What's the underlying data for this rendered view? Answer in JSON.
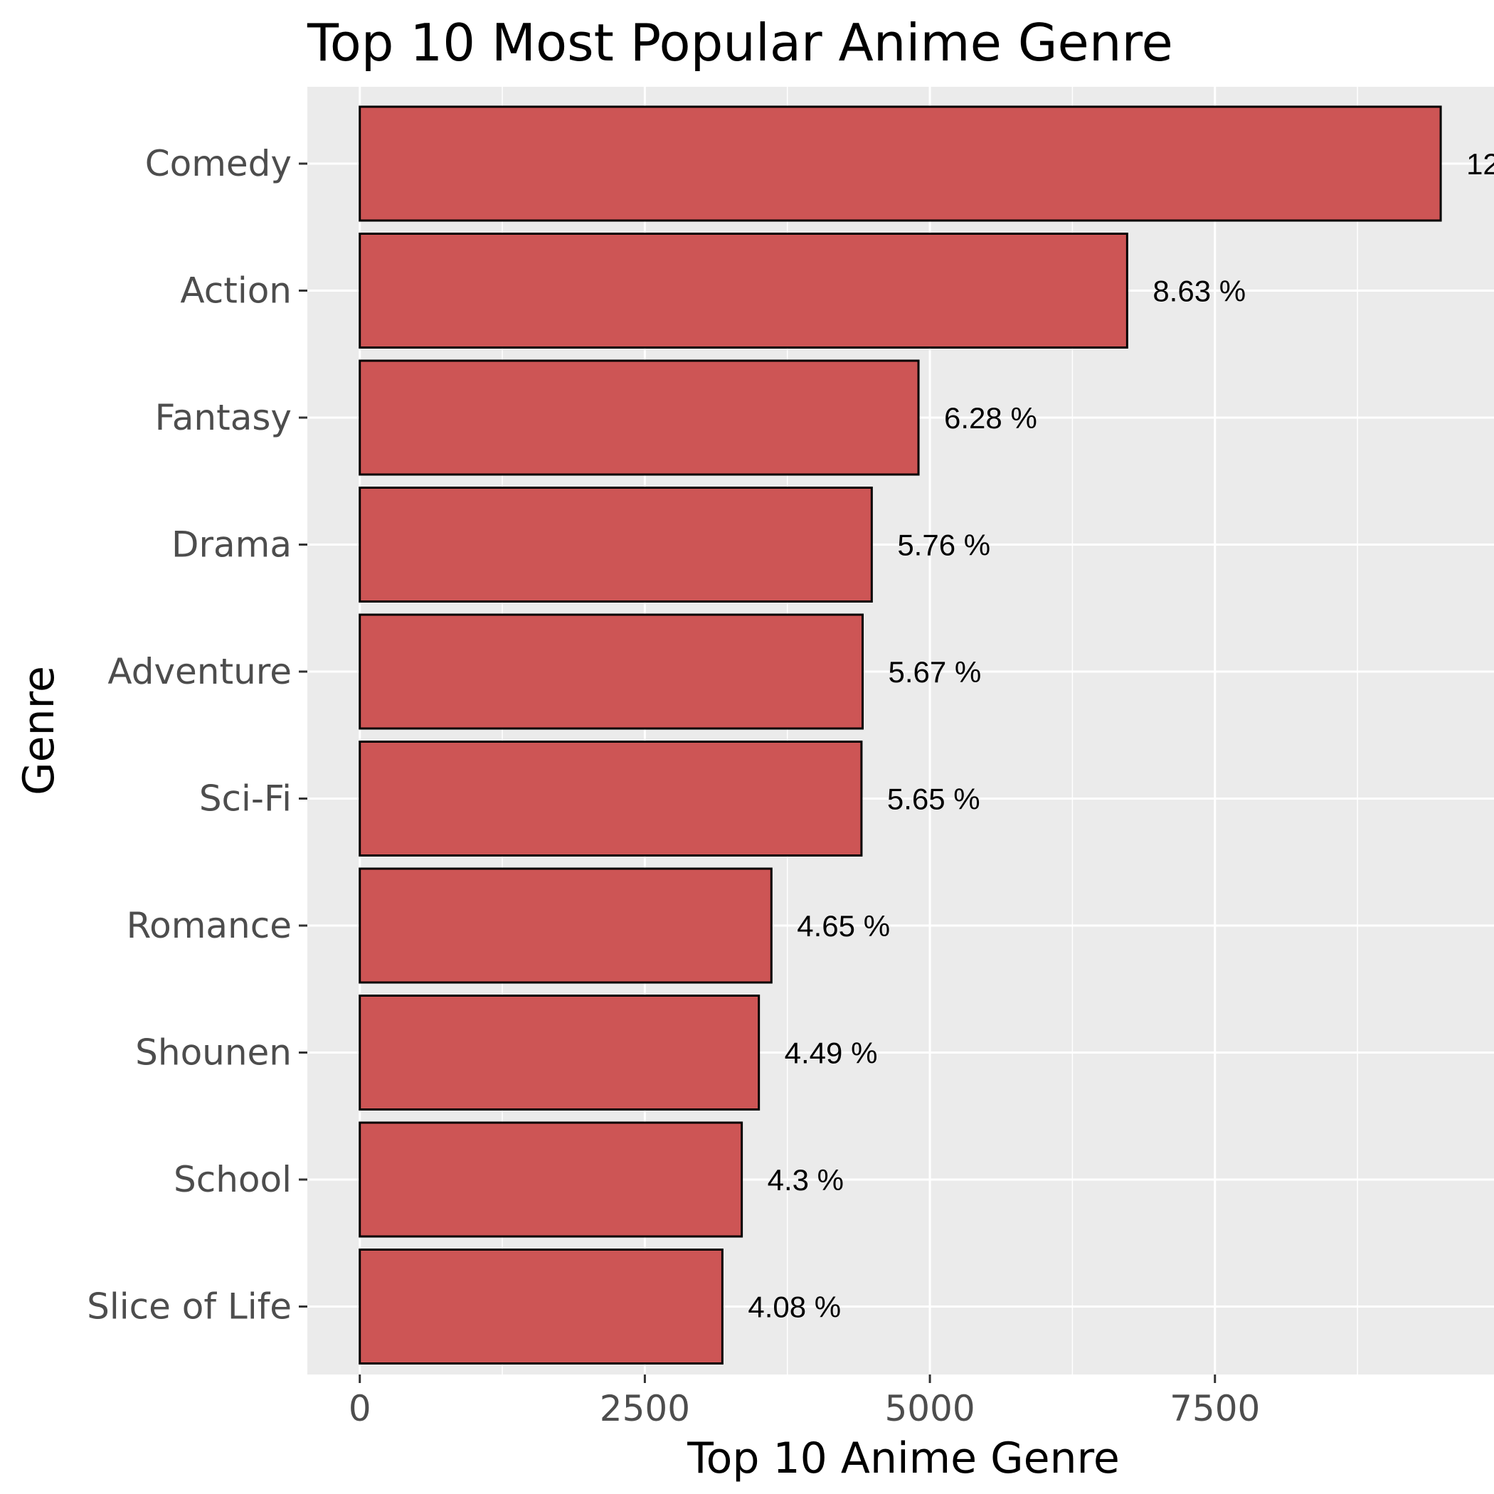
{
  "chart_data": {
    "type": "bar",
    "orientation": "horizontal",
    "title": "Top 10 Most Popular Anime Genre",
    "xlabel": "Top 10 Anime Genre",
    "ylabel": "Genre",
    "categories": [
      "Comedy",
      "Action",
      "Fantasy",
      "Drama",
      "Adventure",
      "Sci-Fi",
      "Romance",
      "Shounen",
      "School",
      "Slice of Life"
    ],
    "values": [
      9480,
      6730,
      4900,
      4490,
      4410,
      4400,
      3610,
      3500,
      3350,
      3180
    ],
    "labels": [
      "12",
      "8.63 %",
      "6.28 %",
      "5.76 %",
      "5.67 %",
      "5.65 %",
      "4.65 %",
      "4.49 %",
      "4.3 %",
      "4.08 %"
    ],
    "xlim": [
      -460,
      9960
    ],
    "xticks": [
      0,
      2500,
      5000,
      7500
    ],
    "xtick_labels": [
      "0",
      "2500",
      "5000",
      "7500"
    ],
    "grid": true,
    "legend": "none",
    "colors": {
      "bar_fill": "#cd5555",
      "bar_stroke": "#000000",
      "panel_background": "#ebebeb",
      "grid": "#ffffff"
    }
  }
}
